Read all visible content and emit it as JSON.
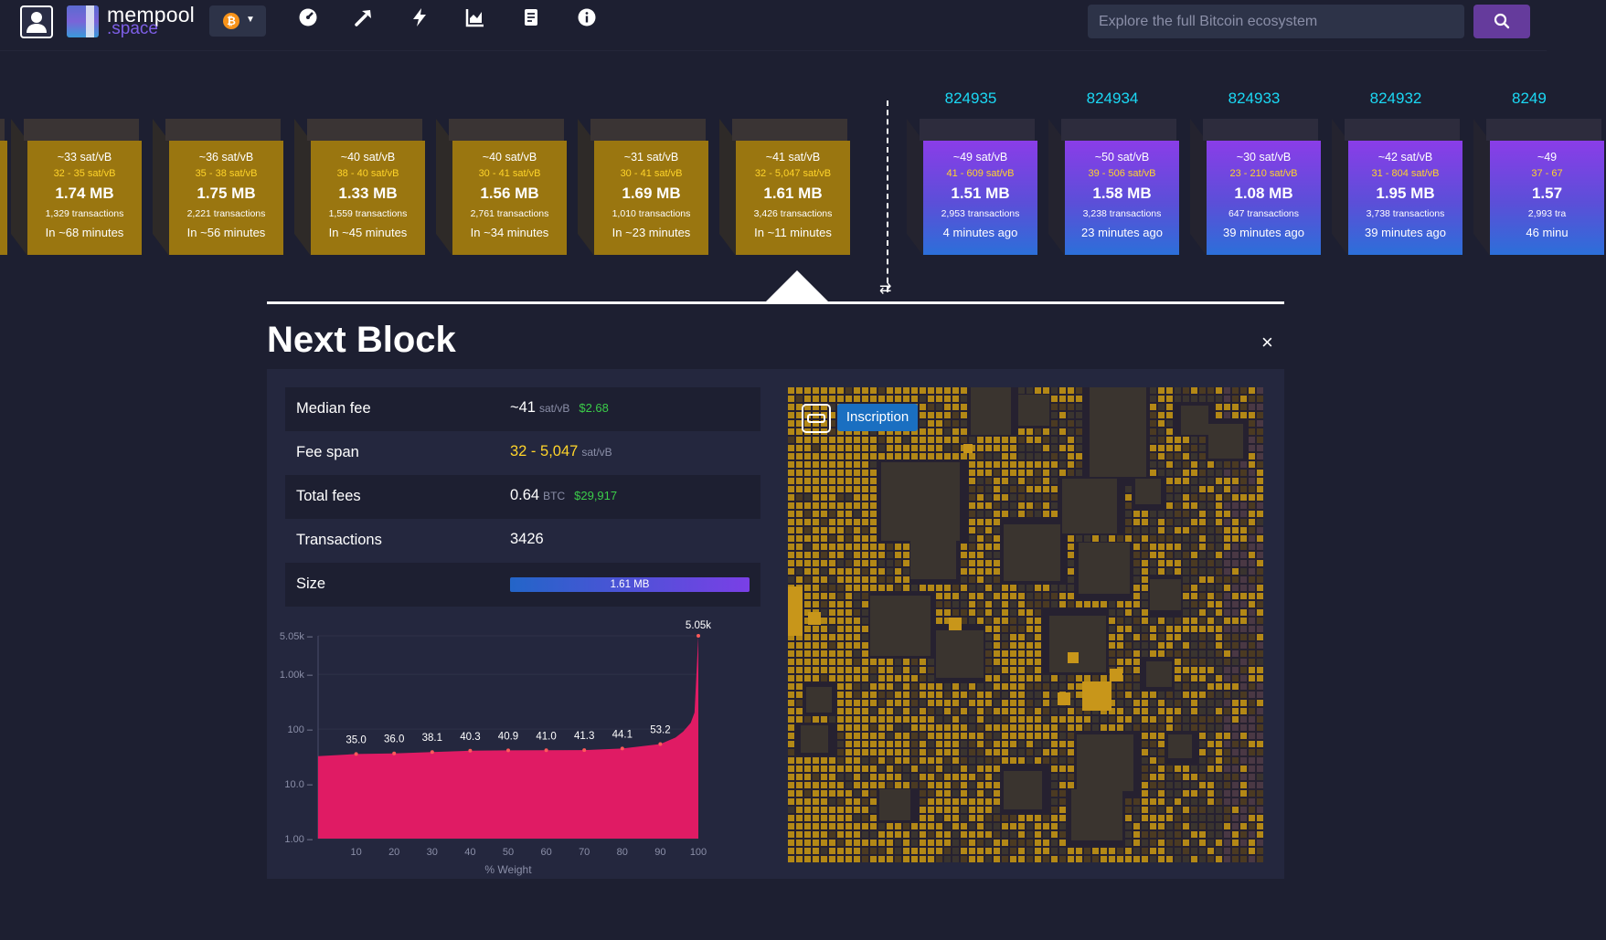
{
  "header": {
    "logo_line1": "mempool",
    "logo_line2": ".space",
    "network_symbol": "₿",
    "search_placeholder": "Explore the full Bitcoin ecosystem",
    "nav_icons": [
      "dashboard-icon",
      "mining-icon",
      "lightning-icon",
      "graphs-icon",
      "docs-icon",
      "about-icon"
    ]
  },
  "mempool_blocks": [
    {
      "fee": "~33 sat/vB",
      "span": "32 - 35 sat/vB",
      "size": "1.74 MB",
      "txs": "1,329 transactions",
      "time": "In ~68 minutes"
    },
    {
      "fee": "~36 sat/vB",
      "span": "35 - 38 sat/vB",
      "size": "1.75 MB",
      "txs": "2,221 transactions",
      "time": "In ~56 minutes"
    },
    {
      "fee": "~40 sat/vB",
      "span": "38 - 40 sat/vB",
      "size": "1.33 MB",
      "txs": "1,559 transactions",
      "time": "In ~45 minutes"
    },
    {
      "fee": "~40 sat/vB",
      "span": "30 - 41 sat/vB",
      "size": "1.56 MB",
      "txs": "2,761 transactions",
      "time": "In ~34 minutes"
    },
    {
      "fee": "~31 sat/vB",
      "span": "30 - 41 sat/vB",
      "size": "1.69 MB",
      "txs": "1,010 transactions",
      "time": "In ~23 minutes"
    },
    {
      "fee": "~41 sat/vB",
      "span": "32 - 5,047 sat/vB",
      "size": "1.61 MB",
      "txs": "3,426 transactions",
      "time": "In ~11 minutes"
    }
  ],
  "mined_blocks": [
    {
      "height": "824935",
      "fee": "~49 sat/vB",
      "span": "41 - 609 sat/vB",
      "size": "1.51 MB",
      "txs": "2,953 transactions",
      "time": "4 minutes ago"
    },
    {
      "height": "824934",
      "fee": "~50 sat/vB",
      "span": "39 - 506 sat/vB",
      "size": "1.58 MB",
      "txs": "3,238 transactions",
      "time": "23 minutes ago"
    },
    {
      "height": "824933",
      "fee": "~30 sat/vB",
      "span": "23 - 210 sat/vB",
      "size": "1.08 MB",
      "txs": "647 transactions",
      "time": "39 minutes ago"
    },
    {
      "height": "824932",
      "fee": "~42 sat/vB",
      "span": "31 - 804 sat/vB",
      "size": "1.95 MB",
      "txs": "3,738 transactions",
      "time": "39 minutes ago"
    },
    {
      "height": "8249",
      "fee": "~49",
      "span": "37 - 67",
      "size": "1.57",
      "txs": "2,993 tra",
      "time": "46 minu"
    }
  ],
  "detail": {
    "title": "Next Block",
    "close": "×",
    "median_fee_label": "Median fee",
    "median_fee_value": "~41",
    "median_fee_unit": "sat/vB",
    "median_fee_usd": "$2.68",
    "fee_span_label": "Fee span",
    "fee_span_value": "32 - 5,047",
    "fee_span_unit": "sat/vB",
    "total_fees_label": "Total fees",
    "total_fees_value": "0.64",
    "total_fees_unit": "BTC",
    "total_fees_usd": "$29,917",
    "transactions_label": "Transactions",
    "transactions_value": "3426",
    "size_label": "Size",
    "size_value": "1.61 MB",
    "size_fraction": 1.0,
    "overlay_tag": "Inscription"
  },
  "colors": {
    "mempool_block": "#9a7610",
    "fee_area": "#e01b64",
    "accent": "#653b9c",
    "height_text": "#1bd8f4",
    "usd": "#3bcc49",
    "fee_span": "#ffd42a"
  },
  "chart_data": {
    "type": "area",
    "xlabel": "% Weight",
    "ylabel": "",
    "y_scale": "log",
    "ylim": [
      1,
      5047
    ],
    "x_ticks": [
      "10",
      "20",
      "30",
      "40",
      "50",
      "60",
      "70",
      "80",
      "90",
      "100"
    ],
    "y_ticks": [
      "1.00",
      "10.0",
      "100",
      "1.00k",
      "5.05k"
    ],
    "points": [
      {
        "x": 10,
        "y": 35.0,
        "label": "35.0"
      },
      {
        "x": 20,
        "y": 36.0,
        "label": "36.0"
      },
      {
        "x": 30,
        "y": 38.1,
        "label": "38.1"
      },
      {
        "x": 40,
        "y": 40.3,
        "label": "40.3"
      },
      {
        "x": 50,
        "y": 40.9,
        "label": "40.9"
      },
      {
        "x": 60,
        "y": 41.0,
        "label": "41.0"
      },
      {
        "x": 70,
        "y": 41.3,
        "label": "41.3"
      },
      {
        "x": 80,
        "y": 44.1,
        "label": "44.1"
      },
      {
        "x": 90,
        "y": 53.2,
        "label": "53.2"
      },
      {
        "x": 100,
        "y": 5047,
        "label": "5.05k"
      }
    ],
    "curve": [
      [
        0,
        32
      ],
      [
        10,
        35
      ],
      [
        20,
        36
      ],
      [
        30,
        38.1
      ],
      [
        40,
        40.3
      ],
      [
        50,
        40.9
      ],
      [
        60,
        41
      ],
      [
        70,
        41.3
      ],
      [
        80,
        44.1
      ],
      [
        90,
        53.2
      ],
      [
        94,
        70
      ],
      [
        96,
        90
      ],
      [
        98,
        130
      ],
      [
        99,
        200
      ],
      [
        100,
        5047
      ]
    ]
  }
}
